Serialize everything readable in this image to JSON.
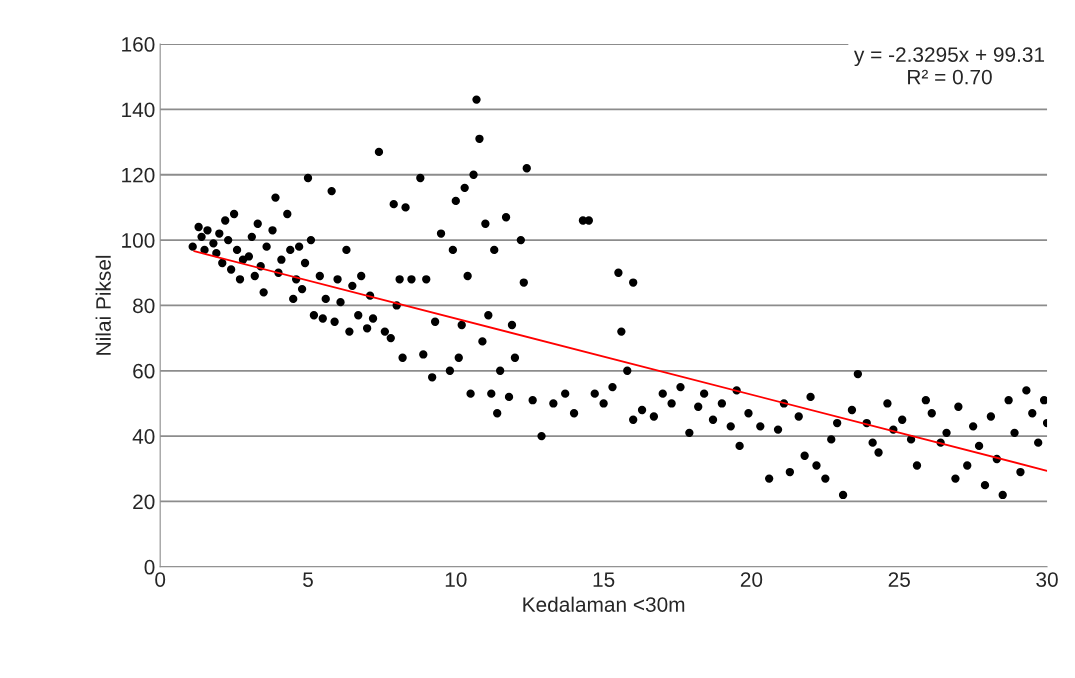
{
  "chart_data": {
    "type": "scatter",
    "xlabel": "Kedalaman <30m",
    "ylabel": "Nilai Piksel",
    "xlim": [
      0,
      30
    ],
    "ylim": [
      0,
      160
    ],
    "xticks": [
      0,
      5,
      10,
      15,
      20,
      25,
      30
    ],
    "yticks": [
      0,
      20,
      40,
      60,
      80,
      100,
      120,
      140,
      160
    ],
    "grid": "y",
    "legend": false,
    "marker": "circle",
    "annotations": [
      "y = -2.3295x + 99.31",
      "R² = 0.70"
    ],
    "series": [
      {
        "color": "#000000",
        "x": [
          1.1,
          1.3,
          1.4,
          1.5,
          1.6,
          1.8,
          1.9,
          2.0,
          2.1,
          2.2,
          2.3,
          2.4,
          2.5,
          2.6,
          2.7,
          2.8,
          3.0,
          3.1,
          3.2,
          3.3,
          3.4,
          3.5,
          3.6,
          3.8,
          3.9,
          4.0,
          4.1,
          4.3,
          4.4,
          4.5,
          4.6,
          4.7,
          4.8,
          4.9,
          5.0,
          5.1,
          5.2,
          5.4,
          5.5,
          5.6,
          5.8,
          5.9,
          6.0,
          6.1,
          6.3,
          6.4,
          6.5,
          6.7,
          6.8,
          7.0,
          7.1,
          7.2,
          7.4,
          7.6,
          7.8,
          7.9,
          8.0,
          8.1,
          8.2,
          8.3,
          8.5,
          8.8,
          8.9,
          9.0,
          9.2,
          9.3,
          9.5,
          9.8,
          9.9,
          10.0,
          10.1,
          10.2,
          10.3,
          10.4,
          10.5,
          10.6,
          10.7,
          10.8,
          10.9,
          11.0,
          11.1,
          11.2,
          11.3,
          11.4,
          11.5,
          11.7,
          11.8,
          11.9,
          12.0,
          12.2,
          12.3,
          12.4,
          12.6,
          12.9,
          13.3,
          13.7,
          14.0,
          14.3,
          14.5,
          14.7,
          15.0,
          15.3,
          15.5,
          15.6,
          15.8,
          16.0,
          16.0,
          16.3,
          16.7,
          17.0,
          17.3,
          17.6,
          17.9,
          18.2,
          18.4,
          18.7,
          19.0,
          19.3,
          19.5,
          19.6,
          19.9,
          20.3,
          20.6,
          20.9,
          21.1,
          21.3,
          21.6,
          21.8,
          22.0,
          22.2,
          22.5,
          22.7,
          22.9,
          23.1,
          23.4,
          23.6,
          23.9,
          24.1,
          24.3,
          24.6,
          24.8,
          25.1,
          25.4,
          25.6,
          25.9,
          26.1,
          26.4,
          26.6,
          26.9,
          27.0,
          27.3,
          27.5,
          27.7,
          27.9,
          28.1,
          28.3,
          28.5,
          28.7,
          28.9,
          29.1,
          29.3,
          29.5,
          29.7,
          29.9,
          30.0
        ],
        "values": [
          98,
          104,
          101,
          97,
          103,
          99,
          96,
          102,
          93,
          106,
          100,
          91,
          108,
          97,
          88,
          94,
          95,
          101,
          89,
          105,
          92,
          84,
          98,
          103,
          113,
          90,
          94,
          108,
          97,
          82,
          88,
          98,
          85,
          93,
          119,
          100,
          77,
          89,
          76,
          82,
          115,
          75,
          88,
          81,
          97,
          72,
          86,
          77,
          89,
          73,
          83,
          76,
          127,
          72,
          70,
          111,
          80,
          88,
          64,
          110,
          88,
          119,
          65,
          88,
          58,
          75,
          102,
          60,
          97,
          112,
          64,
          74,
          116,
          89,
          53,
          120,
          143,
          131,
          69,
          105,
          77,
          53,
          97,
          47,
          60,
          107,
          52,
          74,
          64,
          100,
          87,
          122,
          51,
          40,
          50,
          53,
          47,
          106,
          106,
          53,
          50,
          55,
          90,
          72,
          60,
          87,
          45,
          48,
          46,
          53,
          50,
          55,
          41,
          49,
          53,
          45,
          50,
          43,
          54,
          37,
          47,
          43,
          27,
          42,
          50,
          29,
          46,
          34,
          52,
          31,
          27,
          39,
          44,
          22,
          48,
          59,
          44,
          38,
          35,
          50,
          42,
          45,
          39,
          31,
          51,
          47,
          38,
          41,
          27,
          49,
          31,
          43,
          37,
          25,
          46,
          33,
          22,
          51,
          41,
          29,
          54,
          47,
          38,
          51,
          44
        ]
      },
      {
        "type": "line",
        "color": "#ff0000",
        "marker": "none",
        "x": [
          1.15,
          30
        ],
        "values": [
          96.6,
          29.4
        ]
      }
    ]
  }
}
